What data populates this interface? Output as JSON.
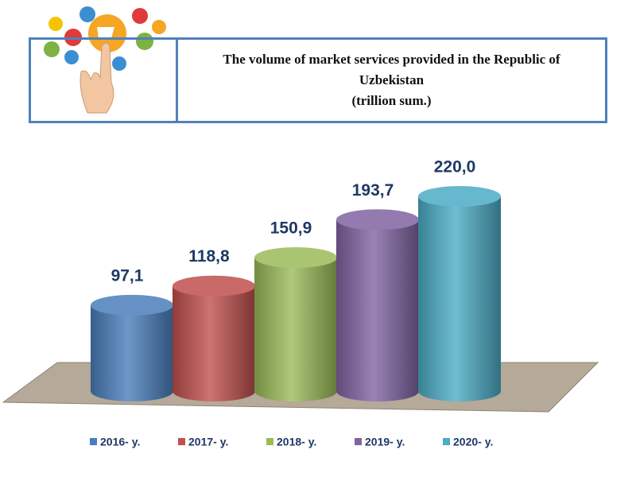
{
  "chart_data": {
    "type": "bar",
    "title": "The volume of market services provided in the Republic of Uzbekistan",
    "subtitle": "(trillion sum.)",
    "series": [
      {
        "name": "2016- y.",
        "color": "#4a7ebb",
        "values": [
          97.1
        ],
        "value_labels": [
          "97,1"
        ]
      },
      {
        "name": "2017- y.",
        "color": "#c0504d",
        "values": [
          118.8
        ],
        "value_labels": [
          "118,8"
        ]
      },
      {
        "name": "2018- y.",
        "color": "#9bbb59",
        "values": [
          150.9
        ],
        "value_labels": [
          "150,9"
        ]
      },
      {
        "name": "2019- y.",
        "color": "#8064a2",
        "values": [
          193.7
        ],
        "value_labels": [
          "193,7"
        ]
      },
      {
        "name": "2020- y.",
        "color": "#4bacc6",
        "values": [
          220.0
        ],
        "value_labels": [
          "220,0"
        ]
      }
    ]
  }
}
